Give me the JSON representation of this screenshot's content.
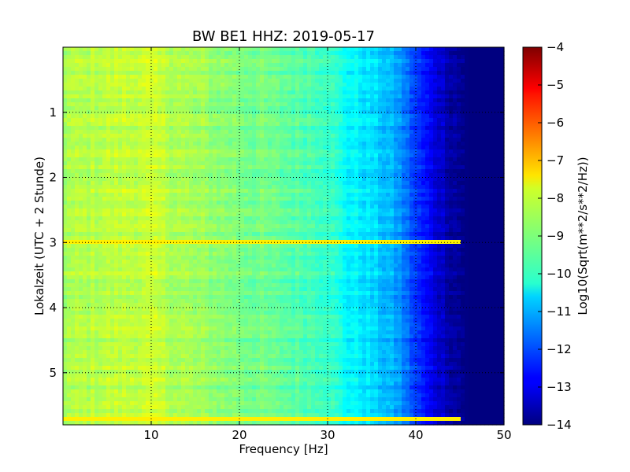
{
  "chart_data": {
    "type": "heatmap",
    "title": "BW BE1 HHZ: 2019-05-17",
    "xlabel": "Frequency [Hz]",
    "ylabel": "Lokalzeit (UTC + 2 Stunde)",
    "xlim": [
      0,
      50
    ],
    "ylim": [
      0,
      5.8
    ],
    "y_inverted": true,
    "x_ticks": [
      10,
      20,
      30,
      40,
      50
    ],
    "y_ticks": [
      1,
      2,
      3,
      4,
      5
    ],
    "grid": true,
    "colormap": "jet",
    "colorbar": {
      "label": "Log10(Sqrt(m**2/s**2/Hz))",
      "range": [
        -14,
        -4
      ],
      "ticks": [
        -4,
        -5,
        -6,
        -7,
        -8,
        -9,
        -10,
        -11,
        -12,
        -13,
        -14
      ]
    },
    "frequency_profile": {
      "frequency_hz": [
        0,
        5,
        10,
        15,
        20,
        25,
        30,
        32,
        35,
        38,
        40,
        42,
        44,
        46,
        50
      ],
      "log10_amplitude": [
        -8.6,
        -8.4,
        -8.3,
        -8.7,
        -9.0,
        -9.3,
        -9.6,
        -10.2,
        -10.6,
        -11.2,
        -12.2,
        -13.0,
        -13.6,
        -14,
        -14
      ]
    },
    "noise_bands": [
      {
        "time_h": 3.0,
        "log10_amplitude": -7.6,
        "f_max_hz": 45
      },
      {
        "time_h": 5.73,
        "log10_amplitude": -7.6,
        "f_max_hz": 45
      }
    ]
  }
}
